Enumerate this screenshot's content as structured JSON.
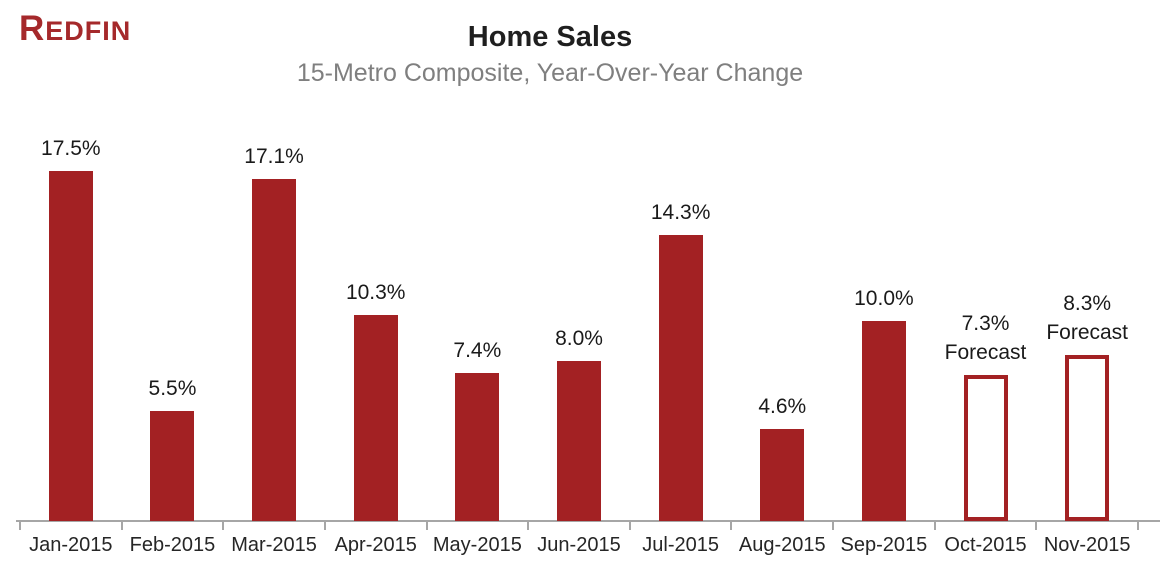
{
  "brand": {
    "logo_text": "REDFIN",
    "logo_color": "#A5292B"
  },
  "header": {
    "title": "Home Sales",
    "subtitle": "15-Metro Composite, Year-Over-Year Change"
  },
  "chart_data": {
    "type": "bar",
    "title": "Home Sales",
    "subtitle": "15-Metro Composite, Year-Over-Year Change",
    "categories": [
      "Jan-2015",
      "Feb-2015",
      "Mar-2015",
      "Apr-2015",
      "May-2015",
      "Jun-2015",
      "Jul-2015",
      "Aug-2015",
      "Sep-2015",
      "Oct-2015",
      "Nov-2015"
    ],
    "values": [
      17.5,
      5.5,
      17.1,
      10.3,
      7.4,
      8.0,
      14.3,
      4.6,
      10.0,
      7.3,
      8.3
    ],
    "value_labels": [
      "17.5%",
      "5.5%",
      "17.1%",
      "10.3%",
      "7.4%",
      "8.0%",
      "14.3%",
      "4.6%",
      "10.0%",
      "7.3%",
      "8.3%"
    ],
    "is_forecast": [
      false,
      false,
      false,
      false,
      false,
      false,
      false,
      false,
      false,
      true,
      true
    ],
    "forecast_suffix_label": "Forecast",
    "unit": "percent year-over-year change",
    "xlabel": "",
    "ylabel": "",
    "ylim": [
      0,
      18.5
    ],
    "grid": false,
    "legend": "none",
    "y_axis_shown": false,
    "bar_color": "#A32123",
    "forecast_fill": "#FFFFFF",
    "axis_color": "#A6A6A6",
    "value_label_color": "#1A1A1A",
    "x_label_color": "#262626",
    "title_color": "#1F1F1F",
    "subtitle_color": "#7F7F7F"
  }
}
